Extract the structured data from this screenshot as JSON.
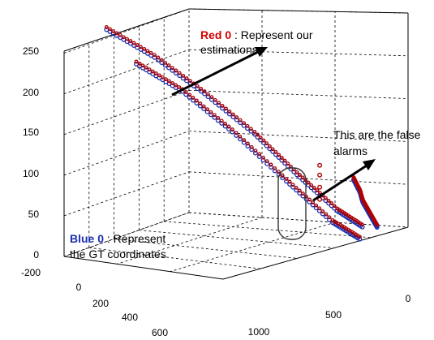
{
  "chart_data": {
    "type": "scatter",
    "projection": "3d",
    "grid": true,
    "z_ticks": [
      "0",
      "50",
      "100",
      "150",
      "200",
      "250"
    ],
    "y_ticks": [
      "-200",
      "0",
      "200",
      "400",
      "600"
    ],
    "x_ticks": [
      "1000",
      "500",
      "0"
    ],
    "series": [
      {
        "name": "Red 0",
        "marker": "o",
        "color": "#b00000",
        "tracks": [
          {
            "points": [
              [
                1000,
                0,
                215
              ],
              [
                880,
                120,
                180
              ],
              [
                760,
                260,
                130
              ],
              [
                640,
                420,
                70
              ],
              [
                540,
                560,
                20
              ],
              [
                480,
                640,
                0
              ]
            ]
          },
          {
            "points": [
              [
                1000,
                -150,
                250
              ],
              [
                880,
                -20,
                215
              ],
              [
                760,
                120,
                170
              ],
              [
                640,
                260,
                120
              ],
              [
                540,
                380,
                70
              ],
              [
                440,
                490,
                25
              ],
              [
                380,
                560,
                5
              ]
            ]
          },
          {
            "points": [
              [
                300,
                560,
                0
              ],
              [
                220,
                450,
                5
              ],
              [
                140,
                340,
                10
              ],
              [
                80,
                270,
                15
              ],
              [
                40,
                200,
                25
              ]
            ]
          },
          {
            "points": [
              [
                395,
                360,
                30
              ],
              [
                395,
                360,
                45
              ],
              [
                395,
                360,
                60
              ],
              [
                395,
                360,
                72
              ]
            ]
          }
        ]
      },
      {
        "name": "Blue 0",
        "marker": "o",
        "color": "#1a2fb0",
        "tracks": [
          {
            "points": [
              [
                1000,
                0,
                215
              ],
              [
                880,
                120,
                180
              ],
              [
                760,
                260,
                130
              ],
              [
                640,
                420,
                70
              ],
              [
                540,
                560,
                20
              ],
              [
                480,
                640,
                0
              ]
            ]
          },
          {
            "points": [
              [
                1000,
                -150,
                250
              ],
              [
                880,
                -20,
                215
              ],
              [
                760,
                120,
                170
              ],
              [
                640,
                260,
                120
              ],
              [
                540,
                380,
                70
              ],
              [
                440,
                490,
                25
              ],
              [
                380,
                560,
                5
              ]
            ]
          },
          {
            "points": [
              [
                300,
                560,
                0
              ],
              [
                220,
                450,
                5
              ],
              [
                140,
                340,
                10
              ],
              [
                80,
                270,
                15
              ],
              [
                40,
                200,
                25
              ]
            ]
          }
        ]
      }
    ]
  },
  "annotations": {
    "red_label": "Red 0",
    "red_text_1": " : Represent our",
    "red_text_2": "estimations",
    "false_text_1": "This are the false",
    "false_text_2": "alarms",
    "blue_label": "Blue 0",
    "blue_text_1": " : Represent",
    "blue_text_2": "the GT coordinates"
  }
}
